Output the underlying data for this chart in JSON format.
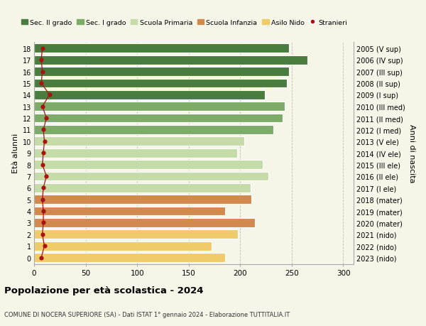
{
  "ages": [
    18,
    17,
    16,
    15,
    14,
    13,
    12,
    11,
    10,
    9,
    8,
    7,
    6,
    5,
    4,
    3,
    2,
    1,
    0
  ],
  "values": [
    247,
    265,
    247,
    245,
    224,
    243,
    241,
    232,
    204,
    197,
    222,
    227,
    210,
    211,
    185,
    214,
    198,
    172,
    185
  ],
  "stranieri": [
    8,
    7,
    8,
    7,
    15,
    8,
    12,
    9,
    10,
    9,
    8,
    12,
    9,
    8,
    9,
    9,
    8,
    10,
    7
  ],
  "right_labels": [
    "2005 (V sup)",
    "2006 (IV sup)",
    "2007 (III sup)",
    "2008 (II sup)",
    "2009 (I sup)",
    "2010 (III med)",
    "2011 (II med)",
    "2012 (I med)",
    "2013 (V ele)",
    "2014 (IV ele)",
    "2015 (III ele)",
    "2016 (II ele)",
    "2017 (I ele)",
    "2018 (mater)",
    "2019 (mater)",
    "2020 (mater)",
    "2021 (nido)",
    "2022 (nido)",
    "2023 (nido)"
  ],
  "age_colors": [
    "#4a7c3f",
    "#4a7c3f",
    "#4a7c3f",
    "#4a7c3f",
    "#4a7c3f",
    "#7dab68",
    "#7dab68",
    "#7dab68",
    "#c5dba8",
    "#c5dba8",
    "#c5dba8",
    "#c5dba8",
    "#c5dba8",
    "#d2894e",
    "#d2894e",
    "#d2894e",
    "#f0cb6a",
    "#f0cb6a",
    "#f0cb6a"
  ],
  "legend_labels": [
    "Sec. II grado",
    "Sec. I grado",
    "Scuola Primaria",
    "Scuola Infanzia",
    "Asilo Nido",
    "Stranieri"
  ],
  "legend_colors": [
    "#4a7c3f",
    "#7dab68",
    "#c5dba8",
    "#d2894e",
    "#f0cb6a",
    "#aa1111"
  ],
  "title": "Popolazione per età scolastica - 2024",
  "subtitle": "COMUNE DI NOCERA SUPERIORE (SA) - Dati ISTAT 1° gennaio 2024 - Elaborazione TUTTITALIA.IT",
  "ylabel": "Età alunni",
  "right_ylabel": "Anni di nascita",
  "xlabel_vals": [
    0,
    50,
    100,
    150,
    200,
    250,
    300
  ],
  "xlim": [
    0,
    310
  ],
  "stranieri_color": "#aa1111",
  "line_color": "#aa1111",
  "bg_color": "#f5f5e8",
  "bar_height": 0.78
}
